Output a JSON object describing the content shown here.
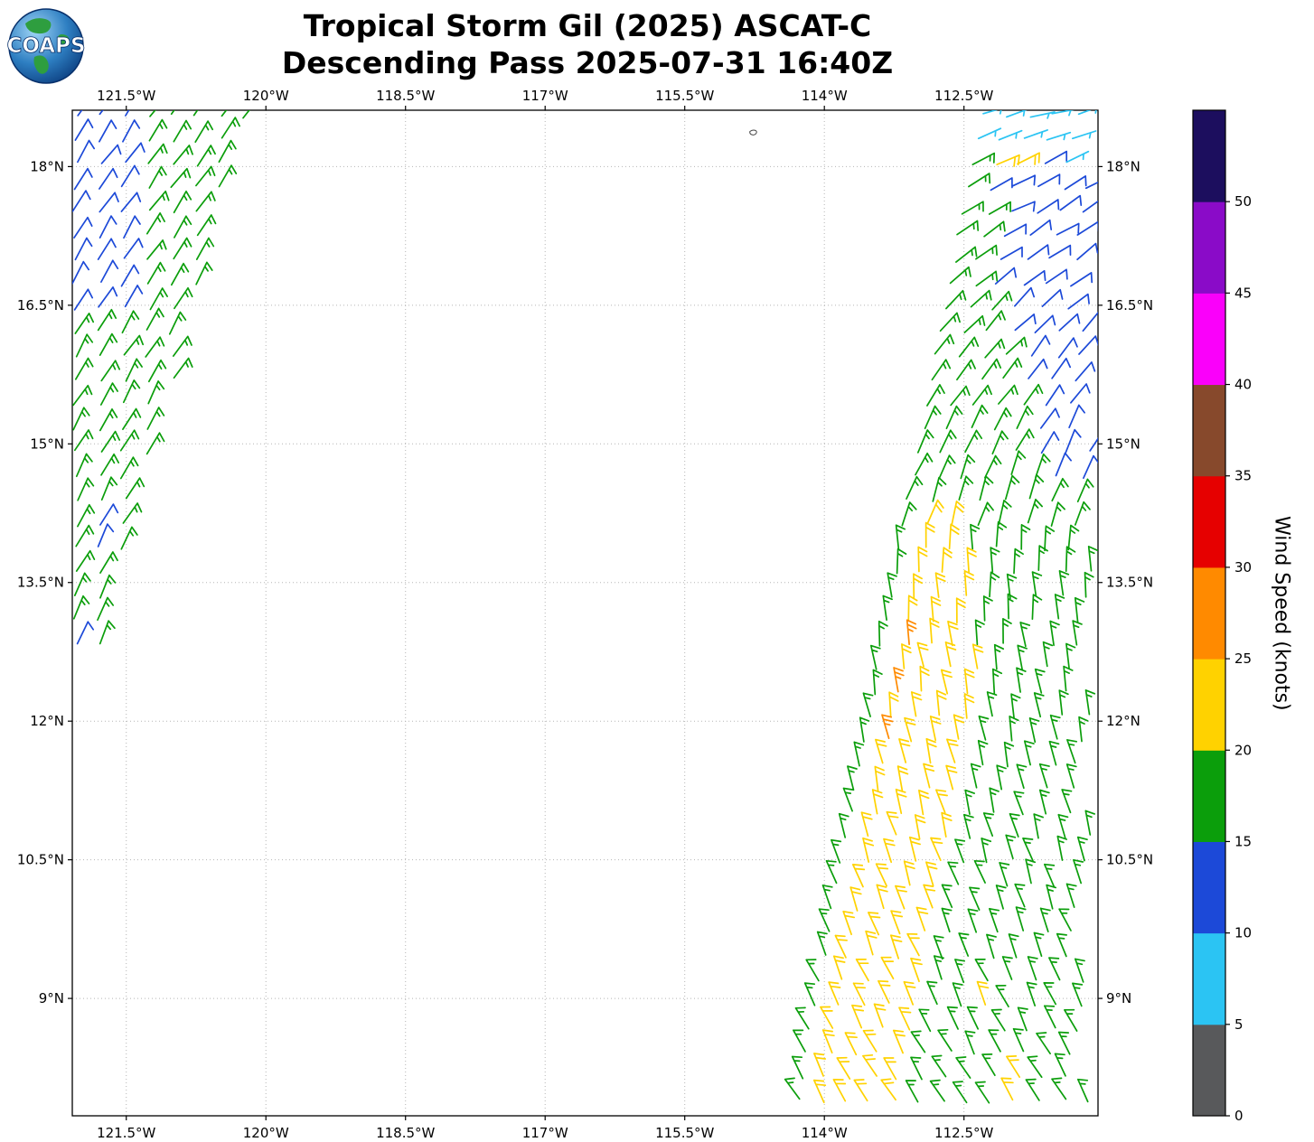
{
  "header": {
    "title_line1": "Tropical Storm Gil (2025) ASCAT-C",
    "title_line2": "Descending Pass 2025-07-31 16:40Z",
    "logo_text": "COAPS"
  },
  "chart_data": {
    "type": "wind_barb_map",
    "title": "Tropical Storm Gil (2025) ASCAT-C Descending Pass 2025-07-31 16:40Z",
    "axes": {
      "lonW_range": [
        122.08,
        111.06
      ],
      "lat_range": [
        7.73,
        18.61
      ],
      "x_ticks": [
        {
          "v": 121.5,
          "label": "121.5°W"
        },
        {
          "v": 120.0,
          "label": "120°W"
        },
        {
          "v": 118.5,
          "label": "118.5°W"
        },
        {
          "v": 117.0,
          "label": "117°W"
        },
        {
          "v": 115.5,
          "label": "115.5°W"
        },
        {
          "v": 114.0,
          "label": "114°W"
        },
        {
          "v": 112.5,
          "label": "112.5°W"
        }
      ],
      "y_ticks": [
        {
          "v": 18.0,
          "label": "18°N"
        },
        {
          "v": 16.5,
          "label": "16.5°N"
        },
        {
          "v": 15.0,
          "label": "15°N"
        },
        {
          "v": 13.5,
          "label": "13.5°N"
        },
        {
          "v": 12.0,
          "label": "12°N"
        },
        {
          "v": 10.5,
          "label": "10.5°N"
        },
        {
          "v": 9.0,
          "label": "9°N"
        }
      ],
      "grid": "dotted"
    },
    "colorbar": {
      "label": "Wind Speed (knots)",
      "range": [
        0,
        55
      ],
      "ticks": [
        0,
        5,
        10,
        15,
        20,
        25,
        30,
        35,
        40,
        45,
        50
      ],
      "bins": [
        {
          "min": 0,
          "max": 5,
          "color": "#58595b"
        },
        {
          "min": 5,
          "max": 10,
          "color": "#2bc4f3"
        },
        {
          "min": 10,
          "max": 15,
          "color": "#1c49d8"
        },
        {
          "min": 15,
          "max": 20,
          "color": "#0b9e0b"
        },
        {
          "min": 20,
          "max": 25,
          "color": "#ffd200"
        },
        {
          "min": 25,
          "max": 30,
          "color": "#ff8a00"
        },
        {
          "min": 30,
          "max": 35,
          "color": "#e60000"
        },
        {
          "min": 35,
          "max": 40,
          "color": "#87492c"
        },
        {
          "min": 40,
          "max": 45,
          "color": "#fa00fa"
        },
        {
          "min": 45,
          "max": 50,
          "color": "#8a0bc8"
        },
        {
          "min": 50,
          "max": 55,
          "color": "#1c0e5e"
        }
      ]
    },
    "wind_barbs": {
      "grid_step_deg": 0.26,
      "left_swath": {
        "lat_min": 12.8,
        "lat_max": 18.55,
        "west_clip_lonW": 122.05,
        "east_edge_lonW_at_latmax": 120.22,
        "east_edge_slope": 0.27,
        "default_speed_kt": 15,
        "blue_region": {
          "lonW_min": 121.32,
          "lat_min": 16.3,
          "speed_kt": 10
        },
        "blue_spots": [
          [
            121.7,
            14.25
          ],
          [
            121.82,
            13.95
          ],
          [
            122.0,
            12.88
          ]
        ],
        "dir_base_deg": 27,
        "dir_per_lat": 1.5,
        "dir_ref_lat": 13
      },
      "right_swath": {
        "lat_min": 7.78,
        "lat_max": 18.55,
        "east_clip_lonW": 111.15,
        "west_edge_lonW_at_latmax": 112.32,
        "west_edge_slope": 0.185,
        "default_speed_kt": 15,
        "cyan_lat_min": 18.25,
        "cyan2_lat_min": 17.85,
        "cyan2_lonW_max": 111.45,
        "cyan_speed_kt": 5,
        "blue_lat_min": 14.5,
        "blue_lat_max": 18.2,
        "blue_boundary_lonW": 112.25,
        "blue_ref_lat": 17.2,
        "blue_shrink_rate": 0.24,
        "blue_speed_kt": 10,
        "gold_lat_max": 14.2,
        "gold_west_off_hi": 0.13,
        "gold_west_off_lo": 0.03,
        "gold_west_off_lat": 12.5,
        "gold_east_base_lonW": 112.35,
        "gold_east_ref_lat": 12,
        "gold_east_rate_below": 0.16,
        "gold_east_rate_above": 0.05,
        "gold_speed_kt": 20,
        "orange_spots": [
          [
            113.15,
            12.87
          ],
          [
            113.3,
            12.35
          ],
          [
            113.42,
            11.8
          ]
        ],
        "gold_spots": [
          [
            112.2,
            18.06
          ],
          [
            111.94,
            17.99
          ],
          [
            112.0,
            8.17
          ],
          [
            111.88,
            7.92
          ],
          [
            112.3,
            9.0
          ]
        ],
        "orange_speed_kt": 25,
        "gold_spot_speed_kt": 20,
        "dir_break_lat": 14,
        "dir_at_break": 15,
        "dir_rate_above": 13,
        "dir_rate_below": 5
      }
    },
    "contour_artifact": {
      "lonW": 114.8,
      "lat": 18.38
    }
  }
}
